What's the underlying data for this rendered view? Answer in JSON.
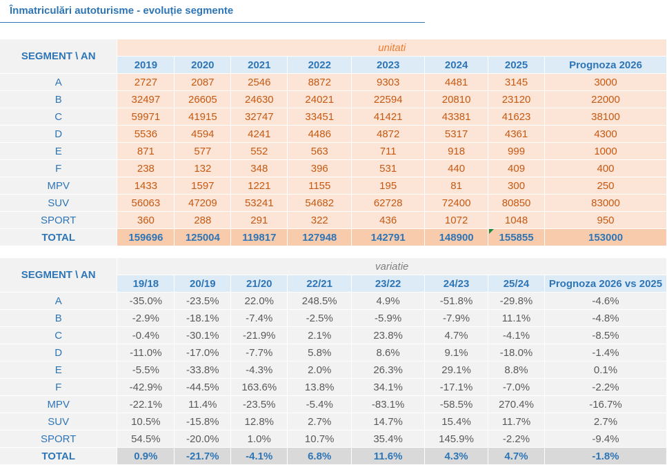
{
  "title": "Înmatriculări autoturisme - evoluție segmente",
  "segment_header": "SEGMENT  \\ AN",
  "segments": [
    "A",
    "B",
    "C",
    "D",
    "E",
    "F",
    "MPV",
    "SUV",
    "SPORT"
  ],
  "total_label": "TOTAL",
  "units_table": {
    "unit_label": "unitati",
    "columns": [
      "2019",
      "2020",
      "2021",
      "2022",
      "2023",
      "2024",
      "2025",
      "Prognoza 2026"
    ],
    "rows": [
      [
        "2727",
        "2087",
        "2546",
        "8872",
        "9303",
        "4481",
        "3145",
        "3000"
      ],
      [
        "32497",
        "26605",
        "24630",
        "24021",
        "22594",
        "20810",
        "23120",
        "22000"
      ],
      [
        "59971",
        "41915",
        "32747",
        "33451",
        "41421",
        "43381",
        "41623",
        "38100"
      ],
      [
        "5536",
        "4594",
        "4241",
        "4486",
        "4872",
        "5317",
        "4361",
        "4300"
      ],
      [
        "871",
        "577",
        "552",
        "563",
        "711",
        "918",
        "999",
        "1000"
      ],
      [
        "238",
        "132",
        "348",
        "396",
        "531",
        "440",
        "409",
        "400"
      ],
      [
        "1433",
        "1597",
        "1221",
        "1155",
        "195",
        "81",
        "300",
        "250"
      ],
      [
        "56063",
        "47209",
        "53241",
        "54682",
        "62728",
        "72400",
        "80850",
        "83000"
      ],
      [
        "360",
        "288",
        "291",
        "322",
        "436",
        "1072",
        "1048",
        "950"
      ]
    ],
    "totals": [
      "159696",
      "125004",
      "119817",
      "127948",
      "142791",
      "148900",
      "155855",
      "153000"
    ]
  },
  "variation_table": {
    "unit_label": "variatie",
    "columns": [
      "19/18",
      "20/19",
      "21/20",
      "22/21",
      "23/22",
      "24/23",
      "25/24",
      "Prognoza 2026 vs 2025"
    ],
    "rows": [
      [
        "-35.0%",
        "-23.5%",
        "22.0%",
        "248.5%",
        "4.9%",
        "-51.8%",
        "-29.8%",
        "-4.6%"
      ],
      [
        "-2.9%",
        "-18.1%",
        "-7.4%",
        "-2.5%",
        "-5.9%",
        "-7.9%",
        "11.1%",
        "-4.8%"
      ],
      [
        "-0.4%",
        "-30.1%",
        "-21.9%",
        "2.1%",
        "23.8%",
        "4.7%",
        "-4.1%",
        "-8.5%"
      ],
      [
        "-11.0%",
        "-17.0%",
        "-7.7%",
        "5.8%",
        "8.6%",
        "9.1%",
        "-18.0%",
        "-1.4%"
      ],
      [
        "-5.5%",
        "-33.8%",
        "-4.3%",
        "2.0%",
        "26.3%",
        "29.1%",
        "8.8%",
        "0.1%"
      ],
      [
        "-42.9%",
        "-44.5%",
        "163.6%",
        "13.8%",
        "34.1%",
        "-17.1%",
        "-7.0%",
        "-2.2%"
      ],
      [
        "-22.1%",
        "11.4%",
        "-23.5%",
        "-5.4%",
        "-83.1%",
        "-58.5%",
        "270.4%",
        "-16.7%"
      ],
      [
        "10.5%",
        "-15.8%",
        "12.8%",
        "2.7%",
        "14.7%",
        "15.4%",
        "11.7%",
        "2.7%"
      ],
      [
        "54.5%",
        "-20.0%",
        "1.0%",
        "10.7%",
        "35.4%",
        "145.9%",
        "-2.2%",
        "-9.4%"
      ]
    ],
    "totals": [
      "0.9%",
      "-21.7%",
      "-4.1%",
      "6.8%",
      "11.6%",
      "4.3%",
      "4.7%",
      "-1.8%"
    ]
  }
}
